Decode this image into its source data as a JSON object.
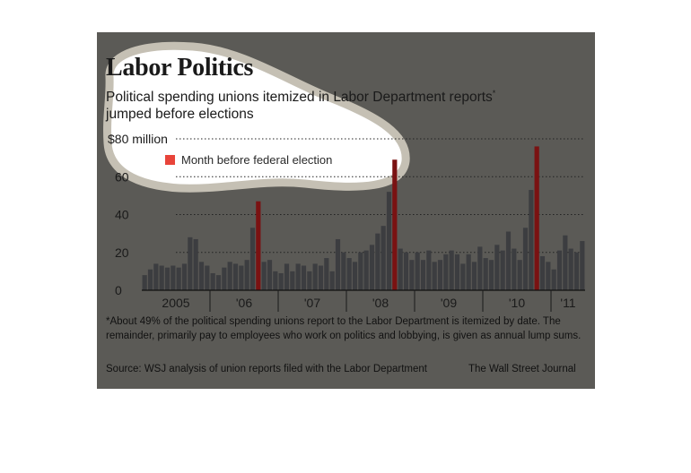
{
  "header": {
    "title": "Labor Politics",
    "subtitle": "Political spending unions itemized in Labor Department reports",
    "subtitle_mark": "*",
    "subtitle_line2": "jumped before elections"
  },
  "legend": {
    "label": "Month before federal election",
    "color": "#e8443a"
  },
  "footer": {
    "footnote": "*About 49% of the political spending unions report to the Labor Department is itemized by date. The remainder, primarily pay to employees who work on politics and lobbying, is given as annual lump sums.",
    "source": "Source: WSJ analysis of union reports filed with the Labor Department",
    "credit": "The Wall Street Journal"
  },
  "chart_data": {
    "type": "bar",
    "unit_label": "$80 million",
    "ylim": [
      0,
      80
    ],
    "yticks": [
      0,
      20,
      40,
      60,
      80
    ],
    "ytick_labels": [
      "0",
      "20",
      "40",
      "60",
      "$80 million"
    ],
    "grid": true,
    "xtick_labels": [
      "2005",
      "'06",
      "'07",
      "'08",
      "'09",
      "'10",
      "'11"
    ],
    "bar_color": "#3c3d40",
    "election_color": "#7a1212",
    "values": [
      8,
      11,
      14,
      13,
      12,
      13,
      12,
      14,
      28,
      27,
      15,
      13,
      9,
      8,
      12,
      15,
      14,
      13,
      16,
      33,
      47,
      15,
      16,
      10,
      9,
      14,
      10,
      14,
      13,
      10,
      14,
      13,
      17,
      10,
      27,
      20,
      17,
      15,
      20,
      21,
      24,
      30,
      34,
      52,
      69,
      22,
      20,
      16,
      20,
      16,
      21,
      15,
      16,
      19,
      21,
      19,
      14,
      19,
      15,
      23,
      17,
      16,
      24,
      21,
      31,
      22,
      16,
      33,
      53,
      76,
      18,
      15,
      11,
      21,
      29,
      22,
      20,
      26
    ],
    "election_indices": [
      20,
      44,
      69
    ]
  }
}
